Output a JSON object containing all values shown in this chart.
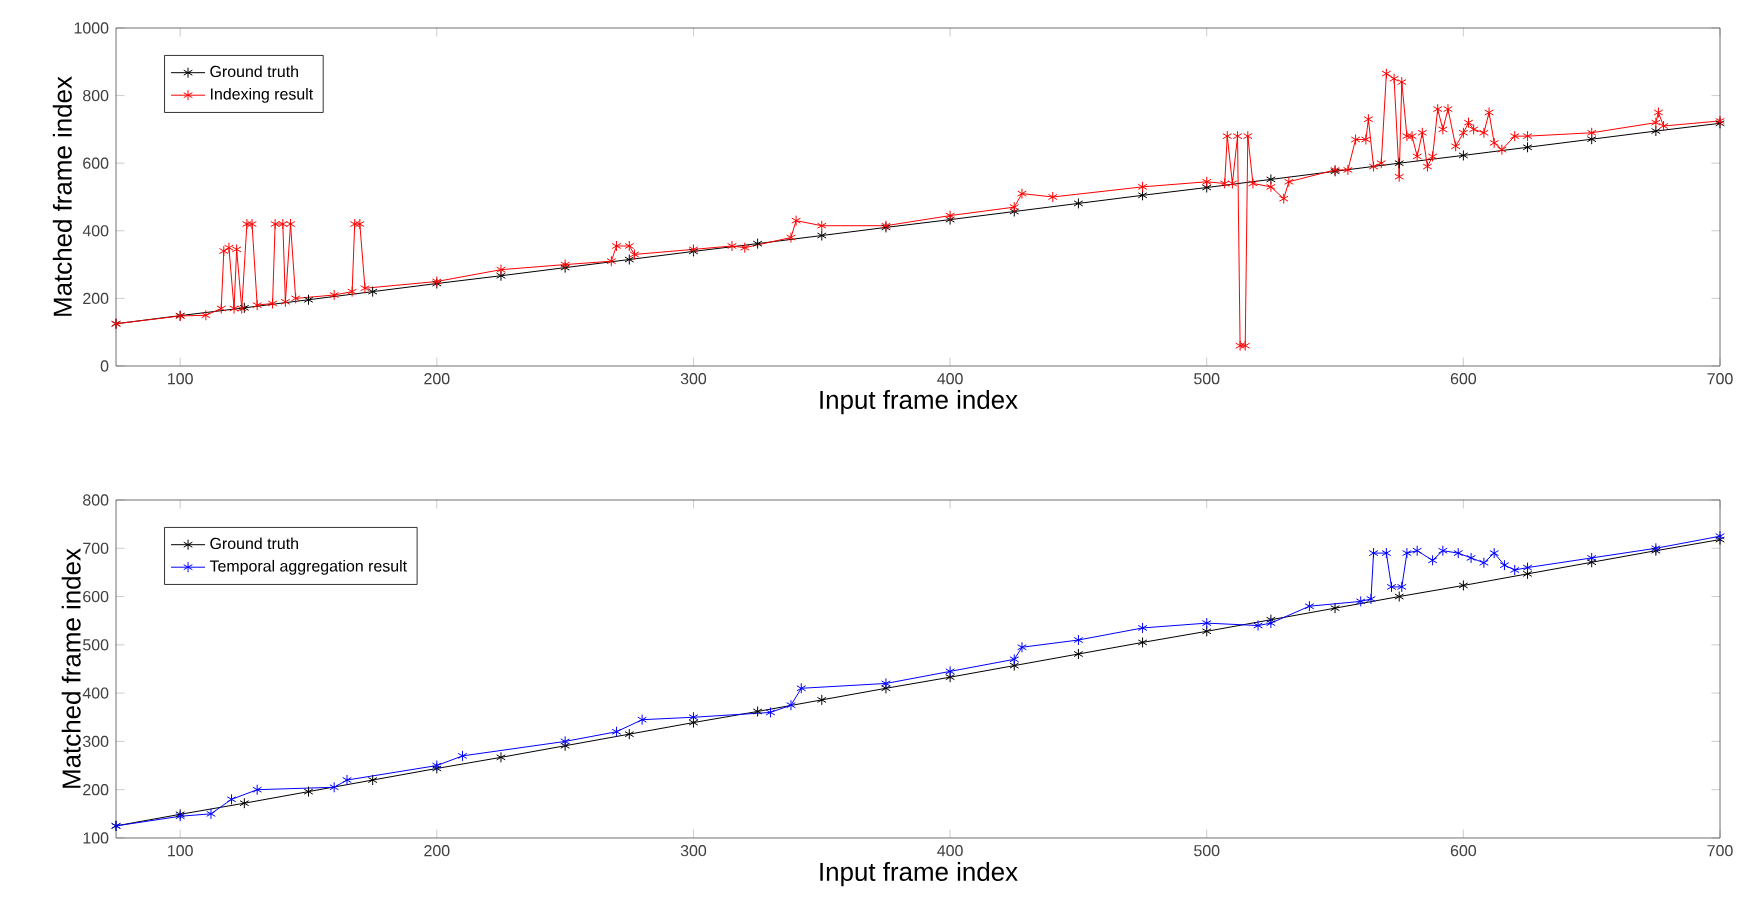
{
  "chart_data": [
    {
      "type": "line",
      "xlabel": "Input frame index",
      "ylabel": "Matched frame index",
      "xlim": [
        75,
        700
      ],
      "ylim": [
        0,
        1000
      ],
      "xticks": [
        100,
        200,
        300,
        400,
        500,
        600,
        700
      ],
      "yticks": [
        0,
        200,
        400,
        600,
        800,
        1000
      ],
      "legend": "top left",
      "marker": "cross",
      "series": [
        {
          "name": "Ground truth",
          "color": "#000000",
          "x": [
            75,
            100,
            125,
            150,
            175,
            200,
            225,
            250,
            275,
            300,
            325,
            350,
            375,
            400,
            425,
            450,
            475,
            500,
            525,
            550,
            575,
            600,
            625,
            650,
            675,
            700
          ],
          "values": [
            125,
            149,
            172,
            196,
            220,
            244,
            267,
            291,
            315,
            339,
            362,
            386,
            410,
            433,
            457,
            481,
            505,
            528,
            552,
            576,
            600,
            623,
            647,
            671,
            695,
            718
          ]
        },
        {
          "name": "Indexing result",
          "color": "#ff0000",
          "x": [
            75,
            100,
            110,
            116,
            117,
            119,
            121,
            122,
            124,
            126,
            128,
            130,
            136,
            137,
            140,
            141,
            143,
            145,
            160,
            167,
            168,
            170,
            172,
            200,
            225,
            250,
            268,
            270,
            275,
            277,
            300,
            315,
            320,
            338,
            340,
            350,
            375,
            400,
            425,
            428,
            440,
            475,
            500,
            507,
            508,
            510,
            512,
            513,
            515,
            516,
            518,
            525,
            530,
            532,
            550,
            555,
            558,
            562,
            563,
            565,
            568,
            570,
            573,
            575,
            576,
            578,
            580,
            582,
            584,
            586,
            588,
            590,
            592,
            594,
            597,
            600,
            602,
            604,
            608,
            610,
            612,
            615,
            620,
            625,
            650,
            675,
            676,
            678,
            700
          ],
          "values": [
            125,
            148,
            150,
            170,
            340,
            350,
            170,
            345,
            170,
            420,
            420,
            180,
            185,
            420,
            420,
            190,
            420,
            200,
            210,
            220,
            420,
            420,
            230,
            250,
            285,
            300,
            310,
            355,
            355,
            330,
            345,
            355,
            350,
            380,
            430,
            415,
            415,
            445,
            470,
            510,
            500,
            530,
            545,
            540,
            680,
            540,
            680,
            60,
            60,
            680,
            540,
            530,
            495,
            545,
            580,
            580,
            670,
            670,
            730,
            590,
            600,
            865,
            850,
            560,
            840,
            680,
            680,
            620,
            690,
            590,
            620,
            760,
            700,
            760,
            650,
            690,
            720,
            700,
            690,
            750,
            660,
            640,
            680,
            680,
            690,
            720,
            750,
            710,
            725
          ]
        }
      ]
    },
    {
      "type": "line",
      "xlabel": "Input frame index",
      "ylabel": "Matched frame index",
      "xlim": [
        75,
        700
      ],
      "ylim": [
        100,
        800
      ],
      "xticks": [
        100,
        200,
        300,
        400,
        500,
        600,
        700
      ],
      "yticks": [
        100,
        200,
        300,
        400,
        500,
        600,
        700,
        800
      ],
      "legend": "top left",
      "marker": "cross",
      "series": [
        {
          "name": "Ground truth",
          "color": "#000000",
          "x": [
            75,
            100,
            125,
            150,
            175,
            200,
            225,
            250,
            275,
            300,
            325,
            350,
            375,
            400,
            425,
            450,
            475,
            500,
            525,
            550,
            575,
            600,
            625,
            650,
            675,
            700
          ],
          "values": [
            125,
            149,
            172,
            196,
            220,
            244,
            267,
            291,
            315,
            339,
            362,
            386,
            410,
            433,
            457,
            481,
            505,
            528,
            552,
            576,
            600,
            623,
            647,
            671,
            695,
            718
          ]
        },
        {
          "name": "Temporal aggregation result",
          "color": "#0000ff",
          "x": [
            75,
            100,
            112,
            120,
            130,
            160,
            165,
            200,
            210,
            250,
            270,
            280,
            300,
            330,
            338,
            342,
            375,
            400,
            425,
            428,
            450,
            475,
            500,
            520,
            525,
            540,
            560,
            564,
            565,
            570,
            572,
            576,
            578,
            582,
            588,
            592,
            598,
            603,
            608,
            612,
            616,
            620,
            625,
            650,
            675,
            700
          ],
          "values": [
            125,
            145,
            150,
            180,
            200,
            205,
            220,
            250,
            270,
            300,
            320,
            345,
            350,
            360,
            375,
            410,
            420,
            445,
            470,
            495,
            510,
            535,
            545,
            540,
            545,
            580,
            590,
            595,
            690,
            690,
            620,
            620,
            690,
            695,
            675,
            695,
            690,
            680,
            670,
            690,
            665,
            655,
            660,
            680,
            700,
            725
          ]
        }
      ]
    }
  ]
}
